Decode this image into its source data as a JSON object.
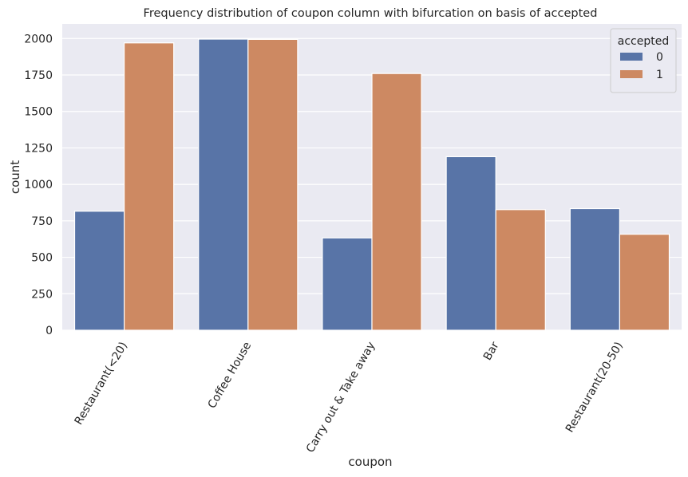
{
  "chart_data": {
    "type": "bar",
    "title": "Frequency distribution of coupon column with bifurcation on basis of accepted",
    "xlabel": "coupon",
    "ylabel": "count",
    "ylim": [
      0,
      2100
    ],
    "yticks": [
      0,
      250,
      500,
      750,
      1000,
      1250,
      1500,
      1750,
      2000
    ],
    "categories": [
      "Restaurant(<20)",
      "Coffee House",
      "Carry out & Take away",
      "Bar",
      "Restaurant(20-50)"
    ],
    "series": [
      {
        "name": "0",
        "values": [
          816,
          1996,
          633,
          1190,
          834
        ],
        "color": "#5874a7"
      },
      {
        "name": "1",
        "values": [
          1970,
          1994,
          1760,
          827,
          658
        ],
        "color": "#cd8962"
      }
    ],
    "legend": {
      "title": "accepted",
      "placement": "top-right"
    },
    "grid": true,
    "x_tick_rotation": -60
  }
}
